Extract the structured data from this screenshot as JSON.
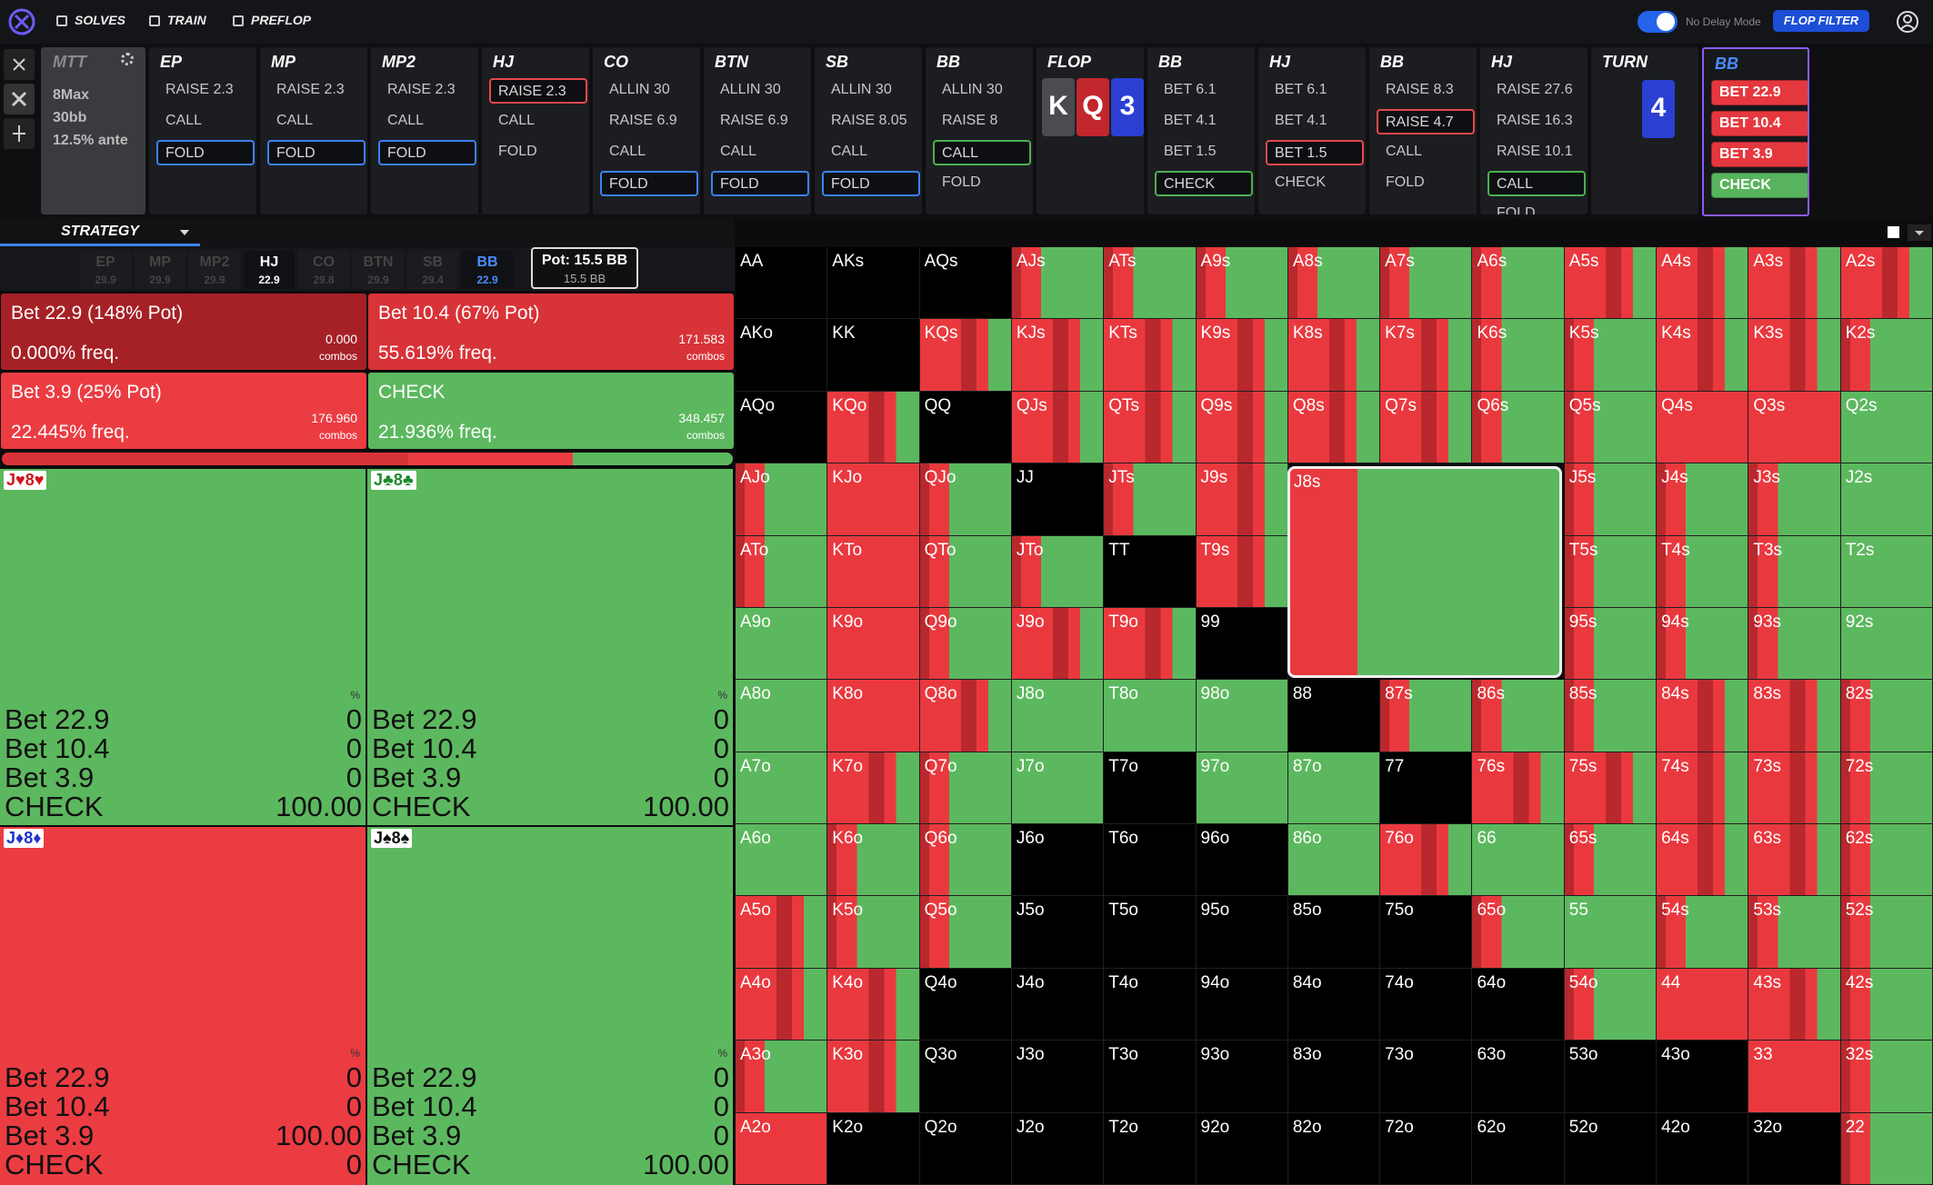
{
  "nav": {
    "items": [
      "SOLVES",
      "TRAIN",
      "PREFLOP"
    ],
    "no_delay": "No Delay Mode",
    "flop_filter": "FLOP FILTER"
  },
  "game": {
    "title": "MTT",
    "lines": [
      "8Max",
      "30bb",
      "12.5% ante"
    ]
  },
  "action_columns": [
    {
      "label": "EP",
      "options": [
        {
          "text": "RAISE 2.3"
        },
        {
          "text": "CALL"
        },
        {
          "text": "FOLD",
          "border": "#3b82f6"
        }
      ]
    },
    {
      "label": "MP",
      "options": [
        {
          "text": "RAISE 2.3"
        },
        {
          "text": "CALL"
        },
        {
          "text": "FOLD",
          "border": "#3b82f6"
        }
      ]
    },
    {
      "label": "MP2",
      "options": [
        {
          "text": "RAISE 2.3"
        },
        {
          "text": "CALL"
        },
        {
          "text": "FOLD",
          "border": "#3b82f6"
        }
      ]
    },
    {
      "label": "HJ",
      "options": [
        {
          "text": "RAISE 2.3",
          "border": "#e5484d"
        },
        {
          "text": "CALL"
        },
        {
          "text": "FOLD"
        }
      ]
    },
    {
      "label": "CO",
      "options": [
        {
          "text": "ALLIN 30"
        },
        {
          "text": "RAISE 6.9"
        },
        {
          "text": "CALL"
        },
        {
          "text": "FOLD",
          "border": "#3b82f6"
        }
      ]
    },
    {
      "label": "BTN",
      "options": [
        {
          "text": "ALLIN 30"
        },
        {
          "text": "RAISE 6.9"
        },
        {
          "text": "CALL"
        },
        {
          "text": "FOLD",
          "border": "#3b82f6"
        }
      ]
    },
    {
      "label": "SB",
      "options": [
        {
          "text": "ALLIN 30"
        },
        {
          "text": "RAISE 8.05"
        },
        {
          "text": "CALL"
        },
        {
          "text": "FOLD",
          "border": "#3b82f6"
        }
      ]
    },
    {
      "label": "BB",
      "options": [
        {
          "text": "ALLIN 30"
        },
        {
          "text": "RAISE 8"
        },
        {
          "text": "CALL",
          "border": "#4caf50"
        },
        {
          "text": "FOLD"
        }
      ]
    },
    {
      "label": "FLOP",
      "cards": [
        {
          "rank": "K",
          "color": "#4b4c50"
        },
        {
          "rank": "Q",
          "color": "#c1272d"
        },
        {
          "rank": "3",
          "color": "#2b3fd3"
        }
      ]
    },
    {
      "label": "BB",
      "options": [
        {
          "text": "BET 6.1"
        },
        {
          "text": "BET 4.1"
        },
        {
          "text": "BET 1.5"
        },
        {
          "text": "CHECK",
          "border": "#4caf50"
        }
      ]
    },
    {
      "label": "HJ",
      "options": [
        {
          "text": "BET 6.1"
        },
        {
          "text": "BET 4.1"
        },
        {
          "text": "BET 1.5",
          "border": "#e5484d"
        },
        {
          "text": "CHECK"
        }
      ]
    },
    {
      "label": "BB",
      "options": [
        {
          "text": "RAISE 8.3"
        },
        {
          "text": "RAISE 4.7",
          "border": "#e5484d"
        },
        {
          "text": "CALL"
        },
        {
          "text": "FOLD"
        }
      ]
    },
    {
      "label": "HJ",
      "options": [
        {
          "text": "RAISE 27.6"
        },
        {
          "text": "RAISE 16.3"
        },
        {
          "text": "RAISE 10.1"
        },
        {
          "text": "CALL",
          "border": "#4caf50"
        },
        {
          "text": "FOLD"
        }
      ]
    },
    {
      "label": "TURN",
      "cards": [
        {
          "rank": "4",
          "color": "#2b3fd3"
        }
      ]
    },
    {
      "label": "BB",
      "active": true,
      "label_color": "#4a8cff",
      "options": [
        {
          "text": "BET 22.9",
          "fill": "#e5383e"
        },
        {
          "text": "BET 10.4",
          "fill": "#e5383e"
        },
        {
          "text": "BET 3.9",
          "fill": "#e5383e"
        },
        {
          "text": "CHECK",
          "fill": "#58b45c"
        }
      ]
    }
  ],
  "strategy_tab": "STRATEGY",
  "positions": [
    {
      "name": "EP",
      "stack": 29.9,
      "color": "#444"
    },
    {
      "name": "MP",
      "stack": 29.9,
      "color": "#444"
    },
    {
      "name": "MP2",
      "stack": 29.9,
      "color": "#444"
    },
    {
      "name": "HJ",
      "stack": 22.9,
      "color": "#ffffff"
    },
    {
      "name": "CO",
      "stack": 29.8,
      "color": "#444"
    },
    {
      "name": "BTN",
      "stack": 29.9,
      "color": "#444"
    },
    {
      "name": "SB",
      "stack": 29.4,
      "color": "#444"
    },
    {
      "name": "BB",
      "stack": 22.9,
      "color": "#4a8cff"
    }
  ],
  "pot": {
    "label": "Pot: 15.5 BB",
    "sub": "15.5 BB"
  },
  "actions": [
    {
      "name": "Bet 22.9 (148% Pot)",
      "freq": 0.0,
      "freq_label": "0.000% freq.",
      "combos": "0.000",
      "combos_label": "combos",
      "color": "#a62126"
    },
    {
      "name": "Bet 10.4 (67% Pot)",
      "freq": 55.619,
      "freq_label": "55.619% freq.",
      "combos": "171.583",
      "combos_label": "combos",
      "color": "#d83338"
    },
    {
      "name": "Bet 3.9 (25% Pot)",
      "freq": 22.445,
      "freq_label": "22.445% freq.",
      "combos": "176.960",
      "combos_label": "combos",
      "color": "#eb3c42"
    },
    {
      "name": "CHECK",
      "freq": 21.936,
      "freq_label": "21.936% freq.",
      "combos": "348.457",
      "combos_label": "combos",
      "color": "#5cb85f"
    }
  ],
  "hands": [
    {
      "label": "J♥8♥",
      "label_color": "#d0161c",
      "color": "#5cb85f",
      "unit": "%",
      "rows": [
        [
          "Bet 22.9",
          "0"
        ],
        [
          "Bet 10.4",
          "0"
        ],
        [
          "Bet 3.9",
          "0"
        ],
        [
          "CHECK",
          "100.00"
        ]
      ]
    },
    {
      "label": "J♣8♣",
      "label_color": "#1d8a2a",
      "color": "#5cb85f",
      "unit": "%",
      "rows": [
        [
          "Bet 22.9",
          "0"
        ],
        [
          "Bet 10.4",
          "0"
        ],
        [
          "Bet 3.9",
          "0"
        ],
        [
          "CHECK",
          "100.00"
        ]
      ]
    },
    {
      "label": "J♦8♦",
      "label_color": "#2233cc",
      "color": "#eb3c42",
      "unit": "%",
      "rows": [
        [
          "Bet 22.9",
          "0"
        ],
        [
          "Bet 10.4",
          "0"
        ],
        [
          "Bet 3.9",
          "100.00"
        ],
        [
          "CHECK",
          "0"
        ]
      ]
    },
    {
      "label": "J♠8♠",
      "label_color": "#111111",
      "color": "#5cb85f",
      "unit": "%",
      "rows": [
        [
          "Bet 22.9",
          "0"
        ],
        [
          "Bet 10.4",
          "0"
        ],
        [
          "Bet 3.9",
          "0"
        ],
        [
          "CHECK",
          "100.00"
        ]
      ]
    }
  ],
  "matrix": {
    "rows": [
      [
        "AA",
        "AKs",
        "AQs",
        "AJs",
        "ATs",
        "A9s",
        "A8s",
        "A7s",
        "A6s",
        "A5s",
        "A4s",
        "A3s",
        "A2s"
      ],
      [
        "AKo",
        "KK",
        "KQs",
        "KJs",
        "KTs",
        "K9s",
        "K8s",
        "K7s",
        "K6s",
        "K5s",
        "K4s",
        "K3s",
        "K2s"
      ],
      [
        "AQo",
        "KQo",
        "QQ",
        "QJs",
        "QTs",
        "Q9s",
        "Q8s",
        "Q7s",
        "Q6s",
        "Q5s",
        "Q4s",
        "Q3s",
        "Q2s"
      ],
      [
        "AJo",
        "KJo",
        "QJo",
        "JJ",
        "JTs",
        "J9s",
        "J8s",
        null,
        null,
        "J5s",
        "J4s",
        "J3s",
        "J2s"
      ],
      [
        "ATo",
        "KTo",
        "QTo",
        "JTo",
        "TT",
        "T9s",
        null,
        null,
        null,
        "T5s",
        "T4s",
        "T3s",
        "T2s"
      ],
      [
        "A9o",
        "K9o",
        "Q9o",
        "J9o",
        "T9o",
        "99",
        null,
        null,
        null,
        "95s",
        "94s",
        "93s",
        "92s"
      ],
      [
        "A8o",
        "K8o",
        "Q8o",
        "J8o",
        "T8o",
        "98o",
        "88",
        "87s",
        "86s",
        "85s",
        "84s",
        "83s",
        "82s"
      ],
      [
        "A7o",
        "K7o",
        "Q7o",
        "J7o",
        "T7o",
        "97o",
        "87o",
        "77",
        "76s",
        "75s",
        "74s",
        "73s",
        "72s"
      ],
      [
        "A6o",
        "K6o",
        "Q6o",
        "J6o",
        "T6o",
        "96o",
        "86o",
        "76o",
        "66",
        "65s",
        "64s",
        "63s",
        "62s"
      ],
      [
        "A5o",
        "K5o",
        "Q5o",
        "J5o",
        "T5o",
        "95o",
        "85o",
        "75o",
        "65o",
        "55",
        "54s",
        "53s",
        "52s"
      ],
      [
        "A4o",
        "K4o",
        "Q4o",
        "J4o",
        "T4o",
        "94o",
        "84o",
        "74o",
        "64o",
        "54o",
        "44",
        "43s",
        "42s"
      ],
      [
        "A3o",
        "K3o",
        "Q3o",
        "J3o",
        "T3o",
        "93o",
        "83o",
        "73o",
        "63o",
        "53o",
        "43o",
        "33",
        "32s"
      ],
      [
        "A2o",
        "K2o",
        "Q2o",
        "J2o",
        "T2o",
        "92o",
        "82o",
        "72o",
        "62o",
        "52o",
        "42o",
        "32o",
        "22"
      ]
    ]
  }
}
